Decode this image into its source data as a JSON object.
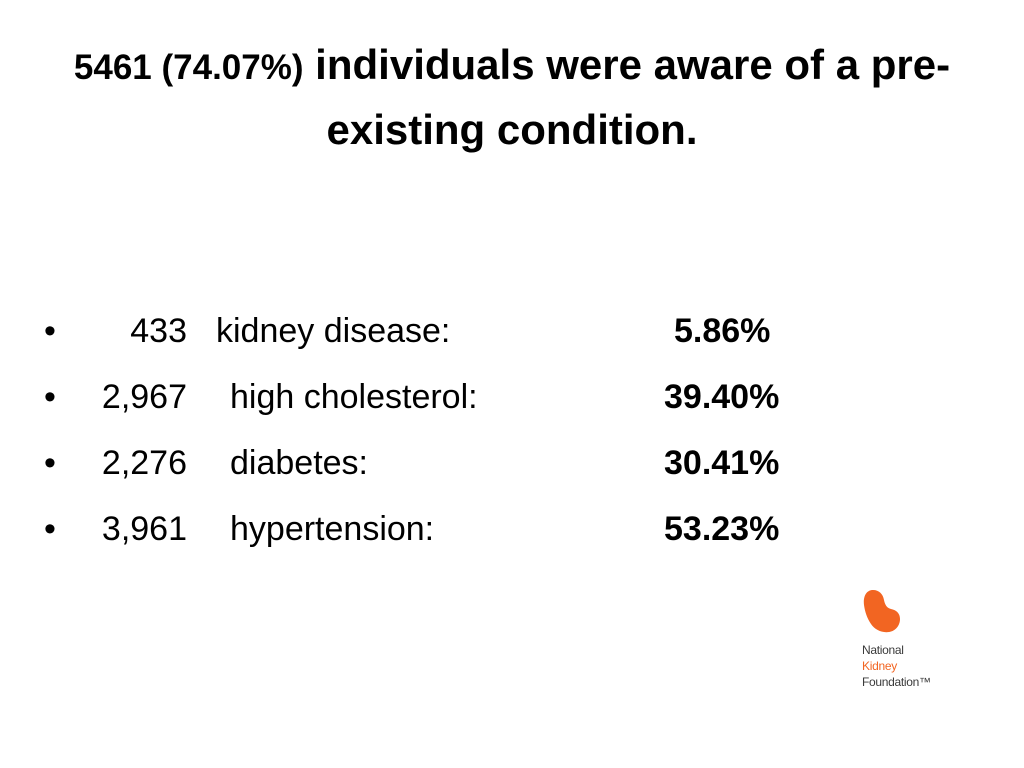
{
  "slide": {
    "title_lead": "5461 (74.07%)",
    "title_rest": " individuals were aware of a pre-existing condition.",
    "bullet_glyph": "•",
    "items": [
      {
        "count": "433",
        "label": "kidney disease:",
        "percent": "5.86%"
      },
      {
        "count": "2,967",
        "label": "high cholesterol:",
        "percent": "39.40%"
      },
      {
        "count": "2,276",
        "label": "diabetes:",
        "percent": "30.41%"
      },
      {
        "count": "3,961",
        "label": "hypertension:",
        "percent": "53.23%"
      }
    ]
  },
  "logo": {
    "line1": "National",
    "line2": "Kidney",
    "line3": "Foundation™",
    "mark_color": "#f26522"
  }
}
